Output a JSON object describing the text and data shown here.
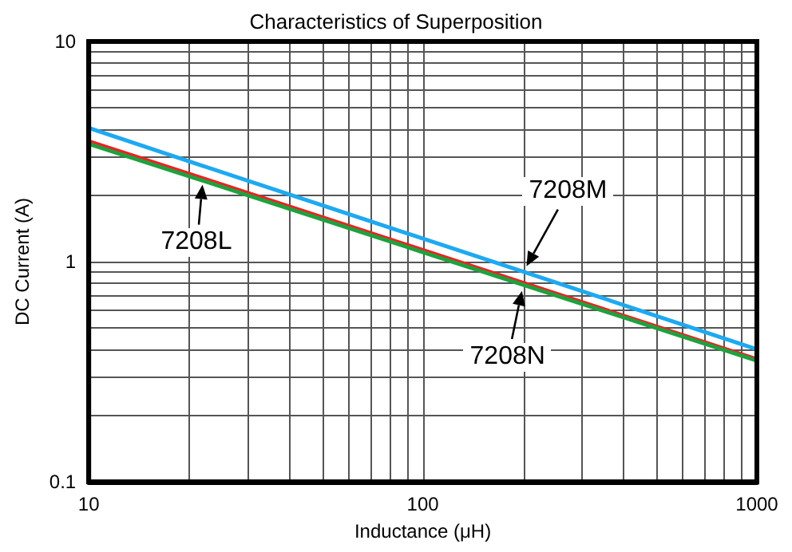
{
  "chart_data": {
    "type": "line",
    "title": "Characteristics of Superposition",
    "xlabel": "Inductance (μH)",
    "ylabel": "DC Current (A)",
    "x": [
      10,
      22,
      200,
      1000
    ],
    "series": [
      {
        "name": "7208M",
        "color": "#1ea9f0",
        "values": [
          4.05,
          2.72,
          0.9,
          0.4
        ]
      },
      {
        "name": "7208L",
        "color": "#f02020",
        "values": [
          3.52,
          2.39,
          0.8,
          0.36
        ]
      },
      {
        "name": "7208N",
        "color": "#20a040",
        "values": [
          3.43,
          2.33,
          0.785,
          0.355
        ]
      }
    ],
    "log": "xy",
    "xlim": [
      10,
      1000
    ],
    "ylim": [
      0.1,
      10
    ],
    "xticks": [
      10,
      {
        "value": 20,
        "label": null
      },
      {
        "value": 30,
        "label": null
      },
      {
        "value": 40,
        "label": null
      },
      {
        "value": 50,
        "label": null
      },
      {
        "value": 60,
        "label": null
      },
      {
        "value": 70,
        "label": null
      },
      {
        "value": 80,
        "label": null
      },
      {
        "value": 90,
        "label": null
      },
      100,
      {
        "value": 200,
        "label": null
      },
      {
        "value": 300,
        "label": null
      },
      {
        "value": 400,
        "label": null
      },
      {
        "value": 500,
        "label": null
      },
      {
        "value": 600,
        "label": null
      },
      {
        "value": 700,
        "label": null
      },
      {
        "value": 800,
        "label": null
      },
      {
        "value": 900,
        "label": null
      },
      1000
    ],
    "yticks": [
      0.1,
      {
        "value": 0.2,
        "label": null
      },
      {
        "value": 0.3,
        "label": null
      },
      {
        "value": 0.4,
        "label": null
      },
      {
        "value": 0.5,
        "label": null
      },
      {
        "value": 0.6,
        "label": null
      },
      {
        "value": 0.7,
        "label": null
      },
      {
        "value": 0.8,
        "label": null
      },
      {
        "value": 0.9,
        "label": null
      },
      1,
      {
        "value": 2,
        "label": null
      },
      {
        "value": 3,
        "label": null
      },
      {
        "value": 4,
        "label": null
      },
      {
        "value": 5,
        "label": null
      },
      {
        "value": 6,
        "label": null
      },
      {
        "value": 7,
        "label": null
      },
      {
        "value": 8,
        "label": null
      },
      {
        "value": 9,
        "label": null
      },
      10
    ],
    "grid": true,
    "legend": false,
    "marker": "none",
    "line_style": "solid"
  }
}
